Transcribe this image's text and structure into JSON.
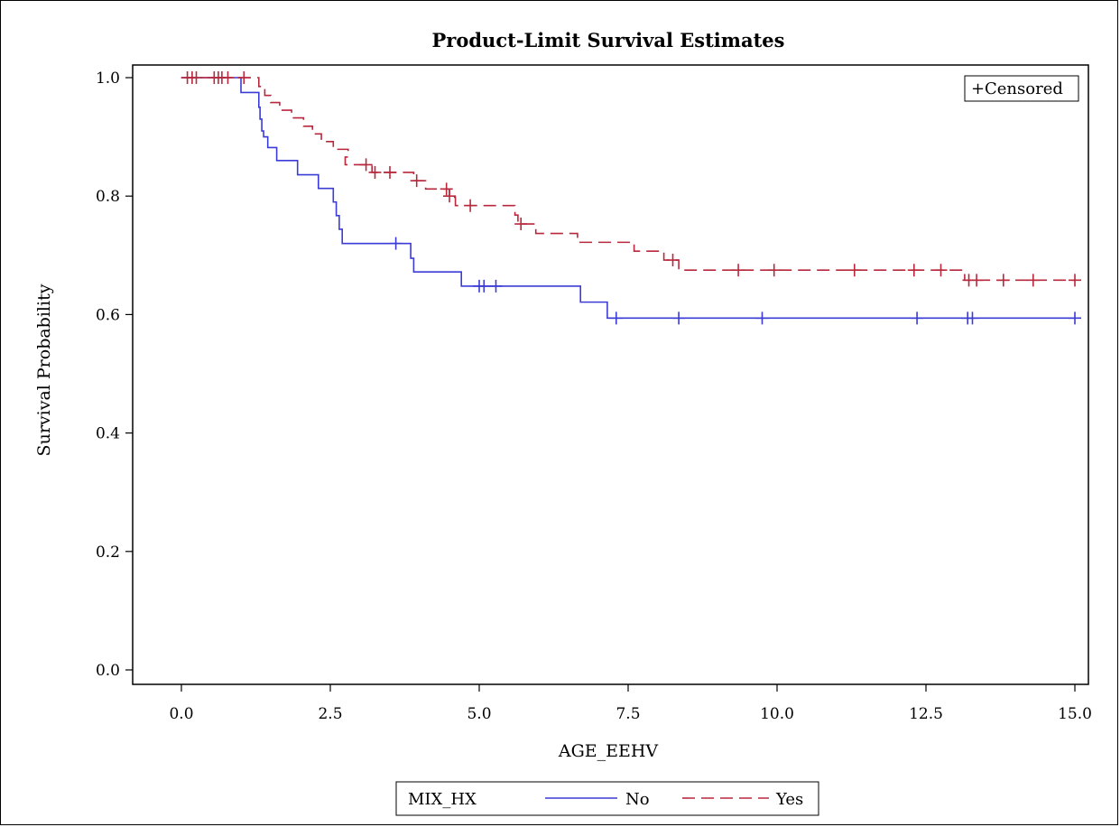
{
  "chart_data": {
    "type": "line",
    "title": "Product-Limit Survival Estimates",
    "xlabel": "AGE_EEHV",
    "ylabel": "Survival Probability",
    "xlim": [
      0,
      15
    ],
    "ylim": [
      0,
      1
    ],
    "xticks": [
      "0.0",
      "2.5",
      "5.0",
      "7.5",
      "10.0",
      "12.5",
      "15.0"
    ],
    "yticks": [
      "0.0",
      "0.2",
      "0.4",
      "0.6",
      "0.8",
      "1.0"
    ],
    "grid": false,
    "censor_legend": "Censored",
    "censor_symbol": "+",
    "legend": {
      "title": "MIX_HX",
      "placement": "bottom"
    },
    "series": [
      {
        "name": "No",
        "color": "#3b3bd6",
        "dash": "solid",
        "steps": [
          [
            0.0,
            1.0
          ],
          [
            1.0,
            0.975
          ],
          [
            1.3,
            0.95
          ],
          [
            1.32,
            0.93
          ],
          [
            1.35,
            0.91
          ],
          [
            1.38,
            0.9
          ],
          [
            1.45,
            0.882
          ],
          [
            1.6,
            0.86
          ],
          [
            1.95,
            0.836
          ],
          [
            2.3,
            0.813
          ],
          [
            2.55,
            0.79
          ],
          [
            2.6,
            0.767
          ],
          [
            2.65,
            0.744
          ],
          [
            2.7,
            0.72
          ],
          [
            3.85,
            0.695
          ],
          [
            3.9,
            0.672
          ],
          [
            4.7,
            0.648
          ],
          [
            6.7,
            0.621
          ],
          [
            7.15,
            0.594
          ],
          [
            15.0,
            0.594
          ]
        ],
        "censored": [
          [
            3.6,
            0.72
          ],
          [
            5.0,
            0.648
          ],
          [
            5.08,
            0.648
          ],
          [
            5.28,
            0.648
          ],
          [
            7.3,
            0.594
          ],
          [
            8.35,
            0.594
          ],
          [
            9.75,
            0.594
          ],
          [
            12.35,
            0.594
          ],
          [
            13.2,
            0.594
          ],
          [
            13.28,
            0.594
          ],
          [
            15.0,
            0.594
          ]
        ]
      },
      {
        "name": "Yes",
        "color": "#b8283c",
        "dash": "dashed",
        "steps": [
          [
            0.0,
            1.0
          ],
          [
            1.3,
            0.985
          ],
          [
            1.4,
            0.97
          ],
          [
            1.5,
            0.958
          ],
          [
            1.65,
            0.945
          ],
          [
            1.85,
            0.932
          ],
          [
            2.05,
            0.918
          ],
          [
            2.2,
            0.905
          ],
          [
            2.35,
            0.892
          ],
          [
            2.55,
            0.879
          ],
          [
            2.8,
            0.866
          ],
          [
            2.75,
            0.853
          ],
          [
            3.2,
            0.84
          ],
          [
            3.9,
            0.826
          ],
          [
            4.1,
            0.812
          ],
          [
            4.5,
            0.798
          ],
          [
            4.6,
            0.784
          ],
          [
            5.6,
            0.768
          ],
          [
            5.65,
            0.753
          ],
          [
            5.95,
            0.737
          ],
          [
            6.65,
            0.722
          ],
          [
            7.6,
            0.707
          ],
          [
            8.1,
            0.692
          ],
          [
            8.35,
            0.675
          ],
          [
            13.15,
            0.658
          ],
          [
            15.0,
            0.658
          ]
        ],
        "censored": [
          [
            0.1,
            1.0
          ],
          [
            0.18,
            1.0
          ],
          [
            0.25,
            1.0
          ],
          [
            0.55,
            1.0
          ],
          [
            0.62,
            1.0
          ],
          [
            0.68,
            1.0
          ],
          [
            0.78,
            1.0
          ],
          [
            1.05,
            1.0
          ],
          [
            3.1,
            0.853
          ],
          [
            3.25,
            0.84
          ],
          [
            3.5,
            0.84
          ],
          [
            3.95,
            0.826
          ],
          [
            4.45,
            0.812
          ],
          [
            4.5,
            0.8
          ],
          [
            4.85,
            0.784
          ],
          [
            5.7,
            0.753
          ],
          [
            8.25,
            0.692
          ],
          [
            9.35,
            0.675
          ],
          [
            9.95,
            0.675
          ],
          [
            11.3,
            0.675
          ],
          [
            12.3,
            0.675
          ],
          [
            12.75,
            0.675
          ],
          [
            13.22,
            0.658
          ],
          [
            13.35,
            0.658
          ],
          [
            13.8,
            0.658
          ],
          [
            14.3,
            0.658
          ],
          [
            15.0,
            0.658
          ]
        ]
      }
    ]
  }
}
